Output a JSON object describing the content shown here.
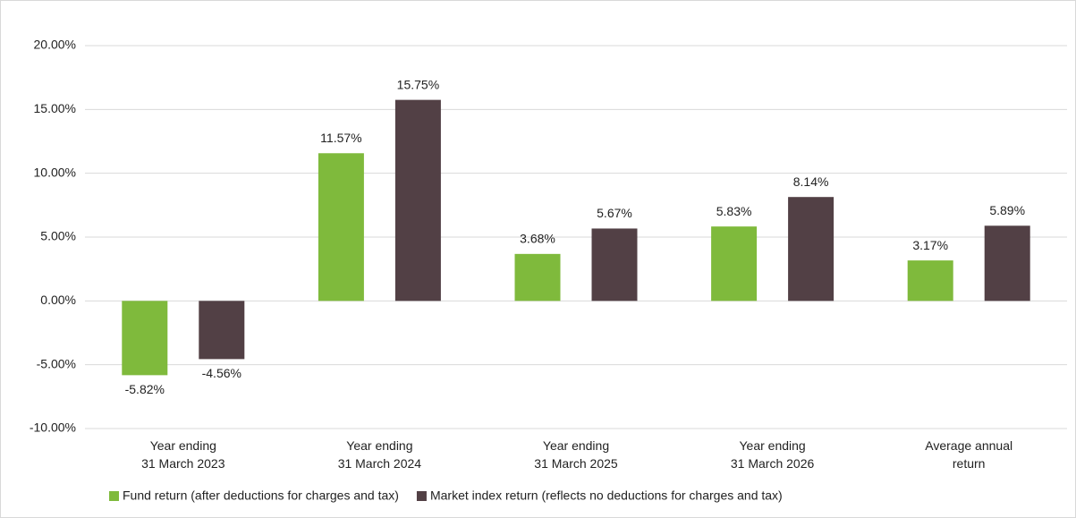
{
  "chart_data": {
    "type": "bar",
    "categories": [
      "Year ending\n31 March 2023",
      "Year ending\n31 March 2024",
      "Year ending\n31 March 2025",
      "Year ending\n31 March 2026",
      "Average annual\nreturn"
    ],
    "series": [
      {
        "name": "Fund return (after deductions for charges and tax)",
        "color": "#7fba3c",
        "values": [
          -5.82,
          11.57,
          3.68,
          5.83,
          3.17
        ],
        "value_labels": [
          "-5.82%",
          "11.57%",
          "3.68%",
          "5.83%",
          "3.17%"
        ]
      },
      {
        "name": "Market index return (reflects no deductions for charges and tax)",
        "color": "#524045",
        "values": [
          -4.56,
          15.75,
          5.67,
          8.14,
          5.89
        ],
        "value_labels": [
          "-4.56%",
          "15.75%",
          "5.67%",
          "8.14%",
          "5.89%"
        ]
      }
    ],
    "ylim": [
      -10,
      20
    ],
    "yticks": [
      {
        "value": -10,
        "label": "-10.00%"
      },
      {
        "value": -5,
        "label": "-5.00%"
      },
      {
        "value": 0,
        "label": "0.00%"
      },
      {
        "value": 5,
        "label": "5.00%"
      },
      {
        "value": 10,
        "label": "10.00%"
      },
      {
        "value": 15,
        "label": "15.00%"
      },
      {
        "value": 20,
        "label": "20.00%"
      }
    ],
    "grid": true,
    "legend": "bottom"
  }
}
